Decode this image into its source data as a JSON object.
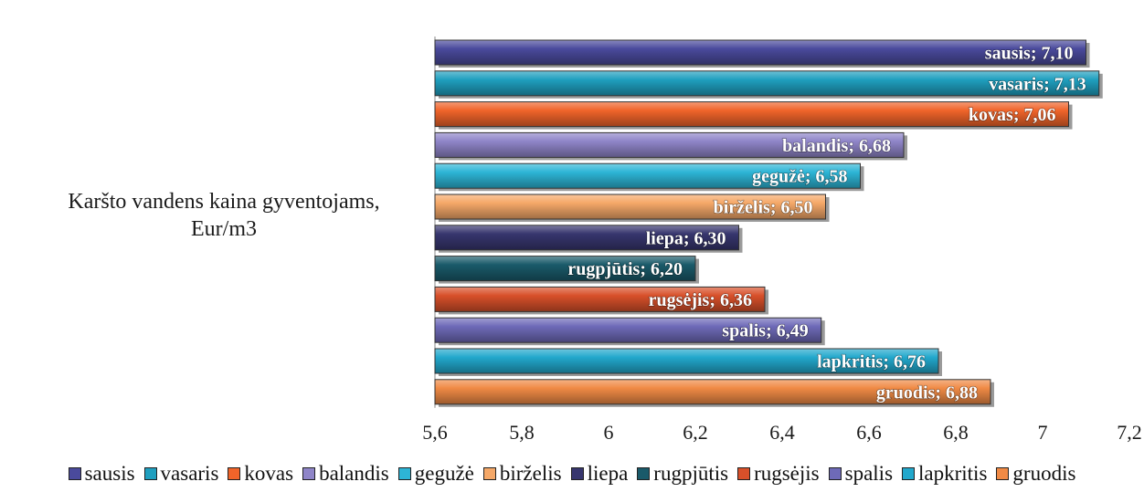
{
  "chart_data": {
    "type": "bar",
    "orientation": "horizontal",
    "category_label_lines": [
      "Karšto vandens kaina gyventojams,",
      "Eur/m3"
    ],
    "xlim": [
      5.6,
      7.2
    ],
    "xticks": [
      "5,6",
      "5,8",
      "6",
      "6,2",
      "6,4",
      "6,6",
      "6,8",
      "7",
      "7,2"
    ],
    "grid": false,
    "legend_position": "bottom",
    "series": [
      {
        "name": "sausis",
        "value": 7.1,
        "label": "sausis; 7,10",
        "color": "#4a4a9c"
      },
      {
        "name": "vasaris",
        "value": 7.13,
        "label": "vasaris; 7,13",
        "color": "#1f9fbf"
      },
      {
        "name": "kovas",
        "value": 7.06,
        "label": "kovas; 7,06",
        "color": "#f0642a"
      },
      {
        "name": "balandis",
        "value": 6.68,
        "label": "balandis; 6,68",
        "color": "#8f85c8"
      },
      {
        "name": "gegužė",
        "value": 6.58,
        "label": "gegužė; 6,58",
        "color": "#2db5d6"
      },
      {
        "name": "birželis",
        "value": 6.5,
        "label": "birželis; 6,50",
        "color": "#f5a868"
      },
      {
        "name": "liepa",
        "value": 6.3,
        "label": "liepa; 6,30",
        "color": "#37366e"
      },
      {
        "name": "rugpjūtis",
        "value": 6.2,
        "label": "rugpjūtis; 6,20",
        "color": "#1a5a6a"
      },
      {
        "name": "rugsėjis",
        "value": 6.36,
        "label": "rugsėjis; 6,36",
        "color": "#d8502a"
      },
      {
        "name": "spalis",
        "value": 6.49,
        "label": "spalis; 6,49",
        "color": "#6e6ab8"
      },
      {
        "name": "lapkritis",
        "value": 6.76,
        "label": "lapkritis; 6,76",
        "color": "#22a8cc"
      },
      {
        "name": "gruodis",
        "value": 6.88,
        "label": "gruodis; 6,88",
        "color": "#f08a45"
      }
    ]
  }
}
